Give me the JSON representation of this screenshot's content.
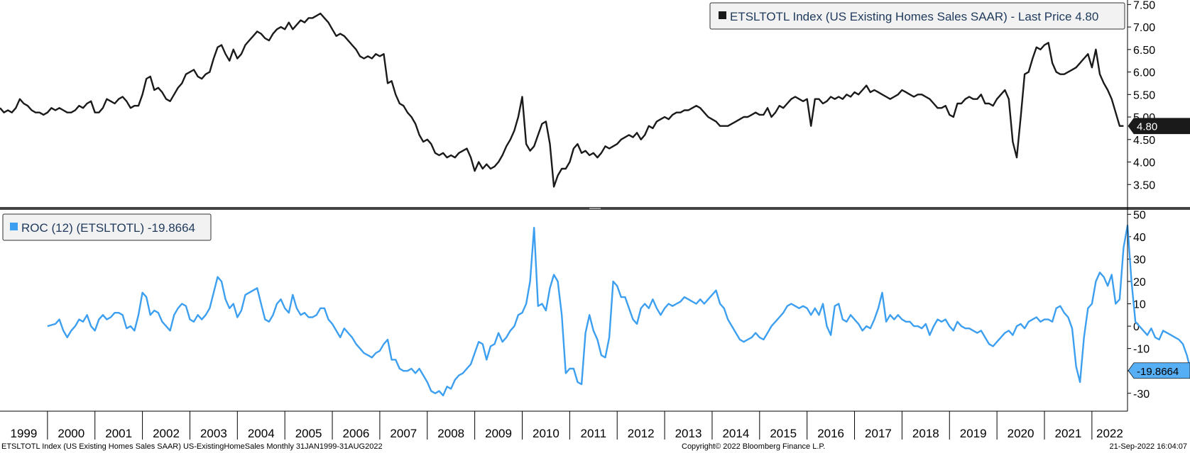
{
  "chart_data": [
    {
      "type": "line",
      "legend": "ETSLTOTL Index (US Existing Homes Sales SAAR) - Last Price 4.80",
      "legend_position": "top-right",
      "last_value_label": "4.80",
      "last_value": 4.8,
      "series_color": "#1a1a1a",
      "ylim": [
        3.0,
        7.6
      ],
      "yticks": [
        "3.50",
        "4.00",
        "4.50",
        "5.00",
        "5.50",
        "6.00",
        "6.50",
        "7.00",
        "7.50"
      ],
      "ytick_values": [
        3.5,
        4.0,
        4.5,
        5.0,
        5.5,
        6.0,
        6.5,
        7.0,
        7.5
      ],
      "x_start": 1999.0,
      "x_step_months": 1,
      "values": [
        5.2,
        5.1,
        5.15,
        5.1,
        5.2,
        5.4,
        5.3,
        5.25,
        5.15,
        5.1,
        5.1,
        5.05,
        5.1,
        5.2,
        5.15,
        5.2,
        5.15,
        5.1,
        5.1,
        5.15,
        5.25,
        5.2,
        5.3,
        5.35,
        5.1,
        5.1,
        5.2,
        5.4,
        5.35,
        5.3,
        5.4,
        5.45,
        5.35,
        5.2,
        5.25,
        5.25,
        5.5,
        5.85,
        5.9,
        5.6,
        5.65,
        5.55,
        5.4,
        5.35,
        5.5,
        5.65,
        5.75,
        5.95,
        6.0,
        6.05,
        5.9,
        5.85,
        5.95,
        6.0,
        6.3,
        6.55,
        6.6,
        6.4,
        6.25,
        6.5,
        6.3,
        6.4,
        6.6,
        6.7,
        6.8,
        6.9,
        6.85,
        6.75,
        6.7,
        6.85,
        6.95,
        7.0,
        6.95,
        7.1,
        6.95,
        7.05,
        7.15,
        7.1,
        7.2,
        7.2,
        7.25,
        7.3,
        7.2,
        7.1,
        6.95,
        6.8,
        6.85,
        6.8,
        6.7,
        6.6,
        6.5,
        6.35,
        6.3,
        6.35,
        6.3,
        6.4,
        6.35,
        6.4,
        5.75,
        5.8,
        5.5,
        5.3,
        5.25,
        5.1,
        5.0,
        4.85,
        4.6,
        4.45,
        4.5,
        4.4,
        4.2,
        4.15,
        4.2,
        4.1,
        4.15,
        4.1,
        4.2,
        4.25,
        4.3,
        4.1,
        3.8,
        4.0,
        3.85,
        3.95,
        3.85,
        3.9,
        4.0,
        4.15,
        4.35,
        4.5,
        4.7,
        5.0,
        5.45,
        4.4,
        4.25,
        4.35,
        4.6,
        4.85,
        4.9,
        4.4,
        3.45,
        3.7,
        3.85,
        3.85,
        4.0,
        4.3,
        4.4,
        4.2,
        4.25,
        4.15,
        4.2,
        4.1,
        4.2,
        4.35,
        4.3,
        4.35,
        4.4,
        4.5,
        4.55,
        4.6,
        4.55,
        4.65,
        4.5,
        4.6,
        4.8,
        4.75,
        4.9,
        4.95,
        5.0,
        4.95,
        5.05,
        5.1,
        5.1,
        5.15,
        5.15,
        5.2,
        5.25,
        5.2,
        5.1,
        5.0,
        4.95,
        4.9,
        4.8,
        4.8,
        4.8,
        4.85,
        4.9,
        4.95,
        5.0,
        5.0,
        5.05,
        5.1,
        5.05,
        5.05,
        5.2,
        5.0,
        5.1,
        5.25,
        5.2,
        5.3,
        5.4,
        5.45,
        5.4,
        5.35,
        5.4,
        4.8,
        5.4,
        5.4,
        5.3,
        5.35,
        5.45,
        5.4,
        5.45,
        5.4,
        5.5,
        5.45,
        5.55,
        5.5,
        5.6,
        5.7,
        5.55,
        5.6,
        5.55,
        5.5,
        5.45,
        5.4,
        5.45,
        5.5,
        5.6,
        5.55,
        5.5,
        5.45,
        5.5,
        5.5,
        5.45,
        5.4,
        5.3,
        5.2,
        5.2,
        5.25,
        5.05,
        5.0,
        5.3,
        5.3,
        5.4,
        5.45,
        5.4,
        5.4,
        5.5,
        5.3,
        5.3,
        5.25,
        5.4,
        5.5,
        5.6,
        5.4,
        4.45,
        4.1,
        5.0,
        5.95,
        6.0,
        6.3,
        6.55,
        6.5,
        6.6,
        6.65,
        6.2,
        6.0,
        5.95,
        5.95,
        6.0,
        6.05,
        6.1,
        6.2,
        6.3,
        6.4,
        6.1,
        6.5,
        5.95,
        5.75,
        5.6,
        5.4,
        5.1,
        4.8,
        4.8
      ]
    },
    {
      "type": "line",
      "legend": "ROC (12) (ETSLTOTL) -19.8664",
      "legend_position": "top-left",
      "last_value_label": "-19.8664",
      "last_value": -19.8664,
      "series_color": "#3d9ff0",
      "ylim": [
        -38,
        52
      ],
      "yticks": [
        "-30",
        "-20",
        "-10",
        "0",
        "10",
        "20",
        "30",
        "40",
        "50"
      ],
      "ytick_values": [
        -30,
        -20,
        -10,
        0,
        10,
        20,
        30,
        40,
        50
      ],
      "x_start": 2000.0,
      "x_step_months": 1,
      "values": [
        0,
        0.5,
        1,
        3,
        -2,
        -5,
        -2,
        0,
        3,
        2,
        5,
        0,
        -2,
        3,
        5,
        3,
        4,
        6,
        6,
        5,
        -1,
        0,
        -2,
        5,
        15,
        13,
        5,
        7,
        6,
        2,
        0,
        -2,
        5,
        8,
        10,
        9,
        3,
        2,
        5,
        3,
        5,
        8,
        15,
        22,
        20,
        12,
        8,
        10,
        4,
        7,
        14,
        15,
        16,
        17,
        10,
        3,
        2,
        5,
        10,
        12,
        8,
        6,
        14,
        8,
        5,
        6,
        4,
        4,
        5,
        8,
        8,
        3,
        1,
        -2,
        -5,
        -1,
        -3,
        -5,
        -8,
        -10,
        -12,
        -13,
        -14,
        -12,
        -11,
        -8,
        -6,
        -15,
        -15,
        -19,
        -20,
        -20,
        -19,
        -21,
        -19,
        -22,
        -25,
        -29,
        -30,
        -29,
        -31,
        -27,
        -28,
        -24,
        -22,
        -21,
        -19,
        -17,
        -12,
        -7,
        -8,
        -15,
        -9,
        -8,
        -3,
        -7,
        -5,
        -2,
        0,
        5,
        6,
        10,
        20,
        44,
        9,
        10,
        7,
        17,
        23,
        20,
        5,
        -21,
        -19,
        -19,
        -25,
        -26,
        -3,
        5,
        -2,
        -6,
        -13,
        -14,
        -5,
        20,
        18,
        13,
        13,
        8,
        3,
        1,
        8,
        10,
        8,
        12,
        8,
        5,
        8,
        10,
        9,
        10,
        11,
        13,
        12,
        11,
        10,
        12,
        10,
        12,
        14,
        16,
        10,
        8,
        3,
        0,
        -3,
        -6,
        -7,
        -6,
        -5,
        -3,
        -5,
        -6,
        -3,
        0,
        2,
        4,
        6,
        9,
        10,
        9,
        8,
        9,
        8,
        5,
        8,
        5,
        10,
        0,
        -4,
        9,
        10,
        3,
        2,
        5,
        3,
        1,
        -2,
        0,
        -1,
        3,
        8,
        15,
        2,
        5,
        3,
        5,
        3,
        2,
        2,
        0,
        0,
        -1,
        1,
        -4,
        0,
        3,
        2,
        3,
        0,
        -2,
        2,
        0,
        -1,
        -1,
        -2,
        -3,
        -2,
        -5,
        -8,
        -9,
        -7,
        -5,
        -3,
        -2,
        -4,
        0,
        1,
        -1,
        2,
        3,
        4,
        2,
        3,
        3,
        2,
        8,
        9,
        6,
        4,
        -1,
        -18,
        -25,
        -5,
        8,
        10,
        20,
        24,
        22,
        18,
        23,
        10,
        12,
        35,
        45,
        20,
        2,
        0,
        -2,
        -4,
        -1,
        -5,
        -6,
        -2,
        -3,
        -4,
        -5,
        -6,
        -8,
        -13,
        -20,
        -19.8664
      ]
    }
  ],
  "x_axis": {
    "labels": [
      "1999",
      "2000",
      "2001",
      "2002",
      "2003",
      "2004",
      "2005",
      "2006",
      "2007",
      "2008",
      "2009",
      "2010",
      "2011",
      "2012",
      "2013",
      "2014",
      "2015",
      "2016",
      "2017",
      "2018",
      "2019",
      "2020",
      "2021",
      "2022"
    ],
    "start": 1999.0,
    "end": 2022.75
  },
  "footer": {
    "left": "ETSLTOTL Index (US Existing Homes Sales SAAR) US-ExistingHomeSales  Monthly 31JAN1999-31AUG2022",
    "center": "Copyright© 2022 Bloomberg Finance L.P.",
    "right": "21-Sep-2022 16:04:07"
  },
  "colors": {
    "price_line": "#1a1a1a",
    "roc_line": "#3d9ff0",
    "last_price_tag_bg": "#1a1a1a",
    "roc_tag_bg": "#56aef5",
    "divider": "#444444"
  }
}
